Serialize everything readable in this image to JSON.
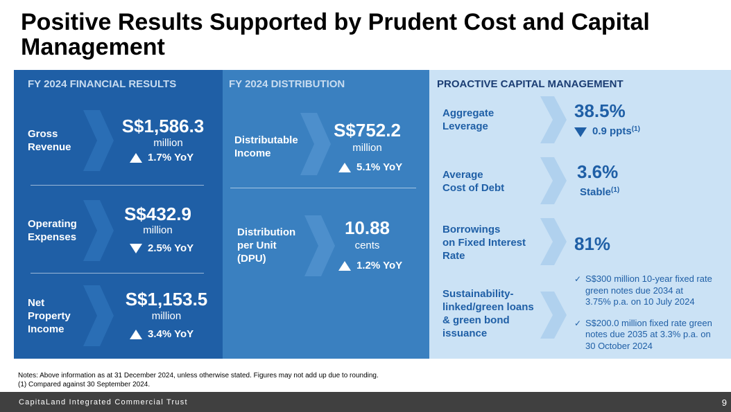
{
  "title": "Positive Results Supported by Prudent Cost and Capital Management",
  "colors": {
    "panel_dark": "#1f5fa6",
    "panel_mid": "#3a80c0",
    "panel_light": "#cbe2f5",
    "chevron_dark": "#2a6eb5",
    "chevron_mid": "#4d8fcc",
    "chevron_light": "#b0d1ee",
    "footer": "#404040"
  },
  "financial": {
    "header": "FY 2024 FINANCIAL RESULTS",
    "items": [
      {
        "label_lines": [
          "Gross",
          "Revenue"
        ],
        "value": "S$1,586.3",
        "unit": "million",
        "direction": "up",
        "change": "1.7% YoY"
      },
      {
        "label_lines": [
          "Operating",
          "Expenses"
        ],
        "value": "S$432.9",
        "unit": "million",
        "direction": "down",
        "change": "2.5% YoY"
      },
      {
        "label_lines": [
          "Net",
          "Property",
          "Income"
        ],
        "value": "S$1,153.5",
        "unit": "million",
        "direction": "up",
        "change": "3.4% YoY"
      }
    ]
  },
  "distribution": {
    "header": "FY 2024 DISTRIBUTION",
    "items": [
      {
        "label_lines": [
          "Distributable",
          "Income"
        ],
        "value": "S$752.2",
        "unit": "million",
        "direction": "up",
        "change": "5.1% YoY"
      },
      {
        "label_lines": [
          "Distribution",
          "per Unit",
          "(DPU)"
        ],
        "value": "10.88",
        "unit": "cents",
        "direction": "up",
        "change": "1.2% YoY"
      }
    ]
  },
  "capital": {
    "header": "PROACTIVE CAPITAL MANAGEMENT",
    "items": [
      {
        "label_lines": [
          "Aggregate",
          "Leverage"
        ],
        "value": "38.5%",
        "direction": "down",
        "sub": "0.9 ppts",
        "sub_note": "(1)"
      },
      {
        "label_lines": [
          "Average",
          "Cost of Debt"
        ],
        "value": "3.6%",
        "sub": "Stable",
        "sub_note": "(1)"
      },
      {
        "label_lines": [
          "Borrowings",
          "on Fixed Interest",
          "Rate"
        ],
        "value": "81%"
      },
      {
        "label_lines": [
          "Sustainability-",
          "linked/green loans",
          "& green bond",
          "issuance"
        ]
      }
    ],
    "bullets": [
      {
        "check": "✓",
        "lines": [
          "S$300 million 10-year fixed rate",
          "green notes due 2034 at",
          "3.75% p.a. on 10 July 2024"
        ]
      },
      {
        "check": "✓",
        "lines": [
          "S$200.0 million fixed rate green",
          "notes due 2035 at 3.3% p.a. on",
          "30 October 2024"
        ]
      }
    ]
  },
  "notes": [
    "Notes: Above information as at 31 December 2024, unless otherwise stated. Figures may not add up due to rounding.",
    "(1)   Compared against 30 September 2024."
  ],
  "footer": {
    "text": "CapitaLand Integrated Commercial Trust",
    "page": "9"
  }
}
